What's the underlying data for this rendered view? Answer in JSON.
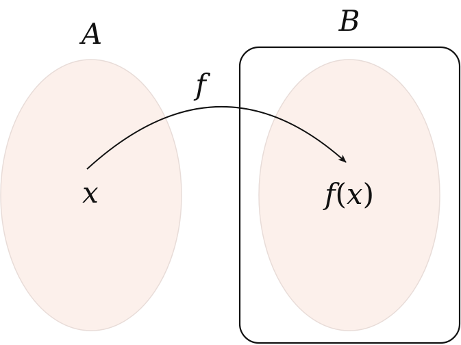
{
  "diagram": {
    "set_a": {
      "label": "A",
      "element": "x",
      "fill": "#fcf0eb",
      "stroke": "#e8dcd8"
    },
    "set_b": {
      "label": "B",
      "element_func": "f",
      "element_open": "(",
      "element_var": "x",
      "element_close": ")",
      "fill": "#fcf0eb",
      "stroke": "#e8dcd8",
      "box_stroke": "#111111"
    },
    "mapping": {
      "label": "f",
      "color": "#111111"
    }
  }
}
